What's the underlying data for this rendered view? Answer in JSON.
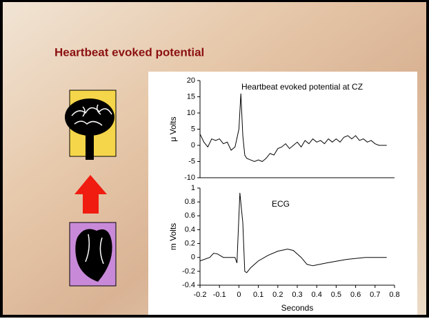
{
  "title": "Heartbeat evoked potential",
  "chart_data": [
    {
      "type": "line",
      "title": "Heartbeat evoked potential at CZ",
      "ylabel": "μ Volts",
      "x": [
        -0.2,
        -0.18,
        -0.16,
        -0.14,
        -0.12,
        -0.1,
        -0.08,
        -0.06,
        -0.04,
        -0.02,
        0,
        0.01,
        0.02,
        0.03,
        0.04,
        0.06,
        0.08,
        0.1,
        0.12,
        0.14,
        0.16,
        0.18,
        0.2,
        0.22,
        0.24,
        0.26,
        0.28,
        0.3,
        0.32,
        0.34,
        0.36,
        0.38,
        0.4,
        0.42,
        0.44,
        0.46,
        0.48,
        0.5,
        0.52,
        0.54,
        0.56,
        0.58,
        0.6,
        0.62,
        0.64,
        0.66,
        0.68,
        0.7,
        0.72,
        0.74,
        0.76
      ],
      "values": [
        3.5,
        1,
        -0.5,
        2,
        1.5,
        2,
        0.5,
        1,
        -1.5,
        -0.5,
        5,
        16,
        3,
        -3,
        -4,
        -4.5,
        -5,
        -4.5,
        -5,
        -4,
        -2.5,
        -3,
        -1,
        -0.5,
        0.5,
        -1,
        0,
        1,
        -0.5,
        1.5,
        0.5,
        2,
        1,
        1.5,
        0.5,
        2,
        1,
        2,
        1,
        2.5,
        3,
        2,
        3,
        1.5,
        2,
        1,
        1.5,
        0.5,
        0,
        0,
        0
      ],
      "color": "#000000",
      "xlim": [
        -0.2,
        0.8
      ],
      "ylim": [
        -10,
        20
      ],
      "yticks": [
        -10,
        -5,
        0,
        5,
        10,
        15,
        20
      ]
    },
    {
      "type": "line",
      "title": "ECG",
      "ylabel": "m Volts",
      "xlabel": "Seconds",
      "x": [
        -0.2,
        -0.15,
        -0.13,
        -0.11,
        -0.08,
        -0.02,
        -0.01,
        0,
        0.005,
        0.02,
        0.03,
        0.04,
        0.06,
        0.1,
        0.15,
        0.2,
        0.25,
        0.28,
        0.32,
        0.35,
        0.38,
        0.45,
        0.55,
        0.65,
        0.76
      ],
      "values": [
        -0.05,
        0,
        0.06,
        0.05,
        0,
        0,
        -0.08,
        0.6,
        0.93,
        0.5,
        -0.2,
        -0.22,
        -0.15,
        -0.05,
        0.03,
        0.09,
        0.12,
        0.1,
        0,
        -0.1,
        -0.12,
        -0.08,
        -0.03,
        0,
        0
      ],
      "color": "#000000",
      "xlim": [
        -0.2,
        0.8
      ],
      "ylim": [
        -0.4,
        1
      ],
      "yticks": [
        -0.4,
        -0.2,
        0,
        0.2,
        0.4,
        0.6,
        0.8,
        1
      ],
      "xticks": [
        -0.2,
        -0.1,
        0,
        0.1,
        0.2,
        0.3,
        0.4,
        0.5,
        0.6,
        0.7,
        0.8
      ]
    }
  ]
}
